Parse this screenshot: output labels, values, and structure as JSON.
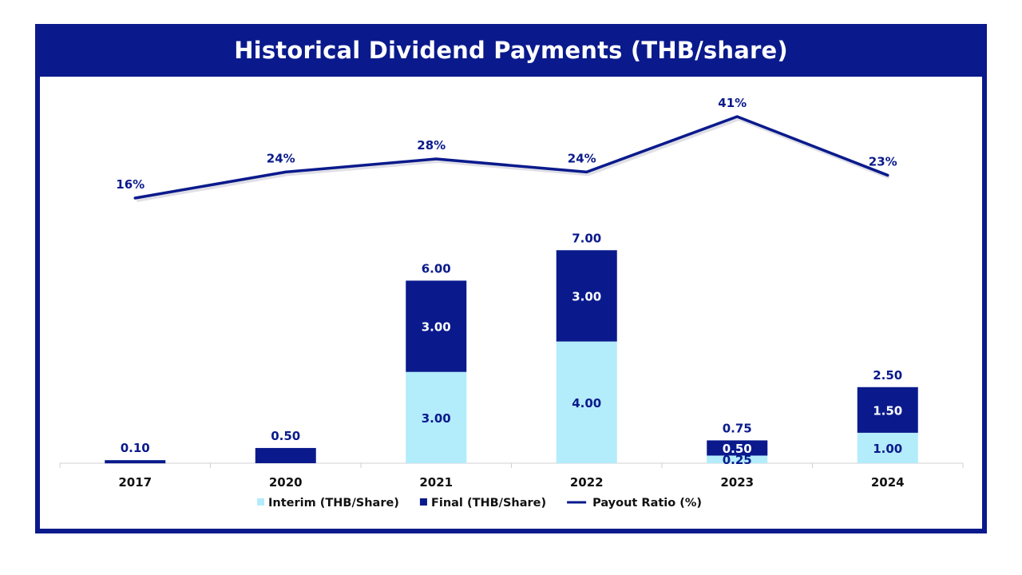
{
  "chart_data": {
    "type": "bar",
    "title": "Historical Dividend Payments (THB/share)",
    "categories": [
      "2017",
      "2020",
      "2021",
      "2022",
      "2023",
      "2024"
    ],
    "series": [
      {
        "name": "Interim (THB/Share)",
        "kind": "bar",
        "values": [
          0,
          0,
          3.0,
          4.0,
          0.25,
          1.0
        ],
        "labels": [
          "",
          "",
          "3.00",
          "4.00",
          "0.25",
          "1.00"
        ]
      },
      {
        "name": "Final (THB/Share)",
        "kind": "bar",
        "values": [
          0.1,
          0.5,
          3.0,
          3.0,
          0.5,
          1.5
        ],
        "labels": [
          "",
          "",
          "3.00",
          "3.00",
          "0.50",
          "1.50"
        ]
      },
      {
        "name": "Payout Ratio (%)",
        "kind": "line",
        "values": [
          16,
          24,
          28,
          24,
          41,
          23
        ],
        "labels": [
          "16%",
          "24%",
          "28%",
          "24%",
          "41%",
          "23%"
        ]
      }
    ],
    "totals": [
      "0.10",
      "0.50",
      "6.00",
      "7.00",
      "0.75",
      "2.50"
    ],
    "ylim": [
      0,
      7
    ],
    "y2lim": [
      0,
      41
    ],
    "grid": false,
    "legend": "bottom",
    "colors": {
      "interim": "#b3ecfb",
      "final": "#0a1a8c",
      "line": "#0a1a8c",
      "frame": "#0a1a8c"
    }
  }
}
